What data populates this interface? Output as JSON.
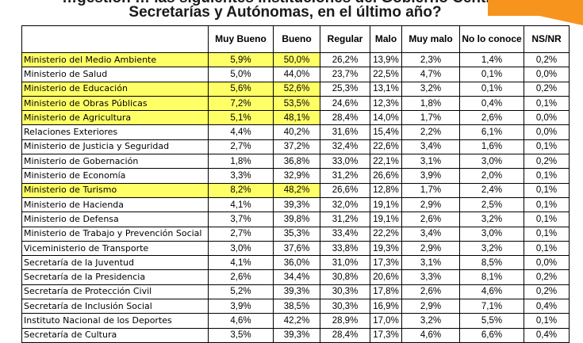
{
  "title": {
    "line1": "…gestión … las siguientes instituciones del Gobierno Central,",
    "line2": "Secretarías y Autónomas, en el último año?"
  },
  "colors": {
    "highlight": "#ffff66",
    "accent": "#f7941d"
  },
  "table": {
    "headers": [
      "",
      "Muy Bueno",
      "Bueno",
      "Regular",
      "Malo",
      "Muy malo",
      "No lo conoce",
      "NS/NR"
    ],
    "rows": [
      {
        "name": "Ministerio del Medio Ambiente",
        "v": [
          "5,9%",
          "50,0%",
          "26,2%",
          "13,9%",
          "2,3%",
          "1,4%",
          "0,2%"
        ],
        "hl": true
      },
      {
        "name": "Ministerio de Salud",
        "v": [
          "5,0%",
          "44,0%",
          "23,7%",
          "22,5%",
          "4,7%",
          "0,1%",
          "0,0%"
        ],
        "hl": false
      },
      {
        "name": "Ministerio de Educación",
        "v": [
          "5,6%",
          "52,6%",
          "25,3%",
          "13,1%",
          "3,2%",
          "0,1%",
          "0,2%"
        ],
        "hl": true
      },
      {
        "name": "Ministerio de Obras Públicas",
        "v": [
          "7,2%",
          "53,5%",
          "24,6%",
          "12,3%",
          "1,8%",
          "0,4%",
          "0,1%"
        ],
        "hl": true
      },
      {
        "name": "Ministerio de Agricultura",
        "v": [
          "5,1%",
          "48,1%",
          "28,4%",
          "14,0%",
          "1,7%",
          "2,6%",
          "0,0%"
        ],
        "hl": true
      },
      {
        "name": "Relaciones Exteriores",
        "v": [
          "4,4%",
          "40,2%",
          "31,6%",
          "15,4%",
          "2,2%",
          "6,1%",
          "0,0%"
        ],
        "hl": false
      },
      {
        "name": "Ministerio de Justicia y Seguridad",
        "v": [
          "2,7%",
          "37,2%",
          "32,4%",
          "22,6%",
          "3,4%",
          "1,6%",
          "0,1%"
        ],
        "hl": false
      },
      {
        "name": "Ministerio de Gobernación",
        "v": [
          "1,8%",
          "36,8%",
          "33,0%",
          "22,1%",
          "3,1%",
          "3,0%",
          "0,2%"
        ],
        "hl": false
      },
      {
        "name": "Ministerio de Economía",
        "v": [
          "3,3%",
          "32,9%",
          "31,2%",
          "26,6%",
          "3,9%",
          "2,0%",
          "0,1%"
        ],
        "hl": false
      },
      {
        "name": "Ministerio de Turismo",
        "v": [
          "8,2%",
          "48,2%",
          "26,6%",
          "12,8%",
          "1,7%",
          "2,4%",
          "0,1%"
        ],
        "hl": true
      },
      {
        "name": "Ministerio de Hacienda",
        "v": [
          "4,1%",
          "39,3%",
          "32,0%",
          "19,1%",
          "2,9%",
          "2,5%",
          "0,1%"
        ],
        "hl": false
      },
      {
        "name": "Ministerio de Defensa",
        "v": [
          "3,7%",
          "39,8%",
          "31,2%",
          "19,1%",
          "2,6%",
          "3,2%",
          "0,1%"
        ],
        "hl": false
      },
      {
        "name": "Ministerio de Trabajo y Prevención Social",
        "v": [
          "2,7%",
          "35,3%",
          "33,4%",
          "22,2%",
          "3,4%",
          "3,0%",
          "0,1%"
        ],
        "hl": false
      },
      {
        "name": "Viceministerio de Transporte",
        "v": [
          "3,0%",
          "37,6%",
          "33,8%",
          "19,3%",
          "2,9%",
          "3,2%",
          "0,1%"
        ],
        "hl": false
      },
      {
        "name": "Secretaría de la Juventud",
        "v": [
          "4,1%",
          "36,0%",
          "31,0%",
          "17,3%",
          "3,1%",
          "8,5%",
          "0,0%"
        ],
        "hl": false
      },
      {
        "name": "Secretaría de la Presidencia",
        "v": [
          "2,6%",
          "34,4%",
          "30,8%",
          "20,6%",
          "3,3%",
          "8,1%",
          "0,2%"
        ],
        "hl": false
      },
      {
        "name": "Secretaría de Protección Civil",
        "v": [
          "5,2%",
          "39,3%",
          "30,3%",
          "17,8%",
          "2,6%",
          "4,6%",
          "0,2%"
        ],
        "hl": false
      },
      {
        "name": "Secretaría de Inclusión Social",
        "v": [
          "3,9%",
          "38,5%",
          "30,3%",
          "16,9%",
          "2,9%",
          "7,1%",
          "0,4%"
        ],
        "hl": false
      },
      {
        "name": "Instituto Nacional de los Deportes",
        "v": [
          "4,6%",
          "42,2%",
          "28,9%",
          "17,0%",
          "3,2%",
          "5,5%",
          "0,1%"
        ],
        "hl": false
      },
      {
        "name": "Secretaría de Cultura",
        "v": [
          "3,5%",
          "39,3%",
          "28,4%",
          "17,3%",
          "4,6%",
          "6,6%",
          "0,4%"
        ],
        "hl": false
      }
    ]
  }
}
